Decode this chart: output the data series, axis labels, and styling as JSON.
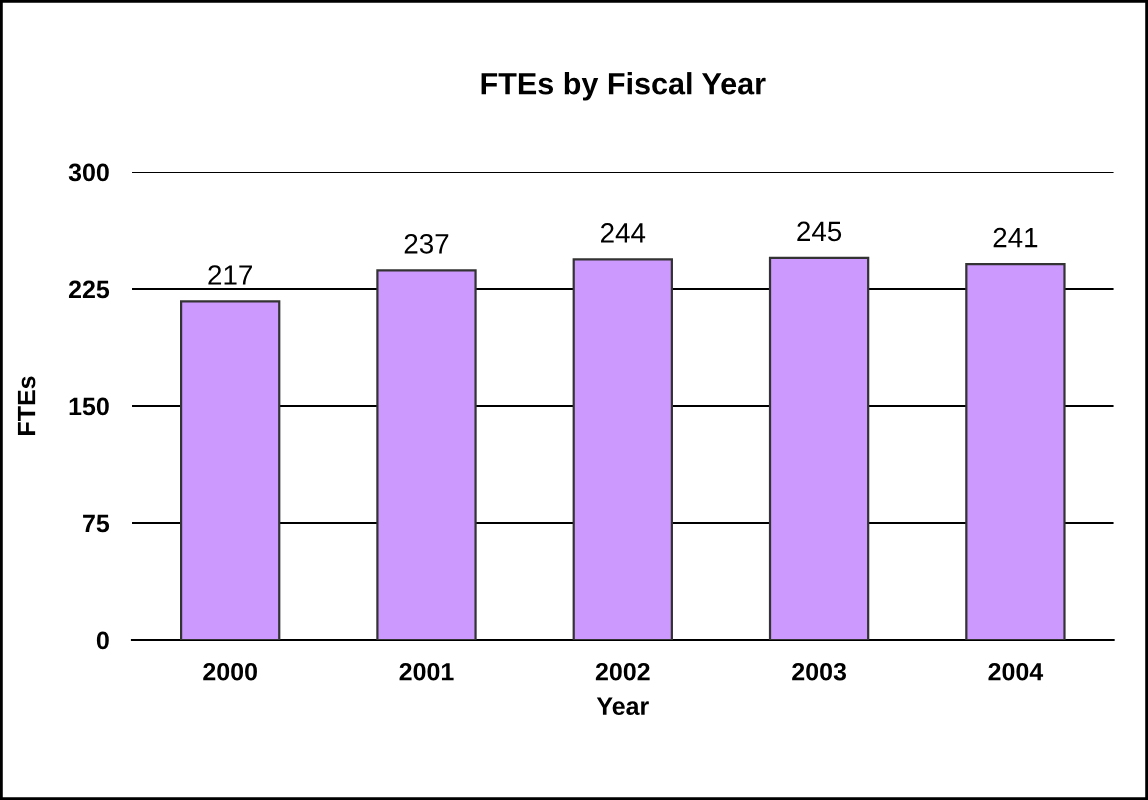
{
  "chart_data": {
    "type": "bar",
    "title": "FTEs by Fiscal Year",
    "xlabel": "Year",
    "ylabel": "FTEs",
    "categories": [
      "2000",
      "2001",
      "2002",
      "2003",
      "2004"
    ],
    "values": [
      217,
      237,
      244,
      245,
      241
    ],
    "color": "#cc99ff",
    "ylim": [
      0,
      300
    ],
    "yticks": [
      0,
      75,
      150,
      225,
      300
    ],
    "grid": "y",
    "data_labels": true,
    "legend": false
  }
}
